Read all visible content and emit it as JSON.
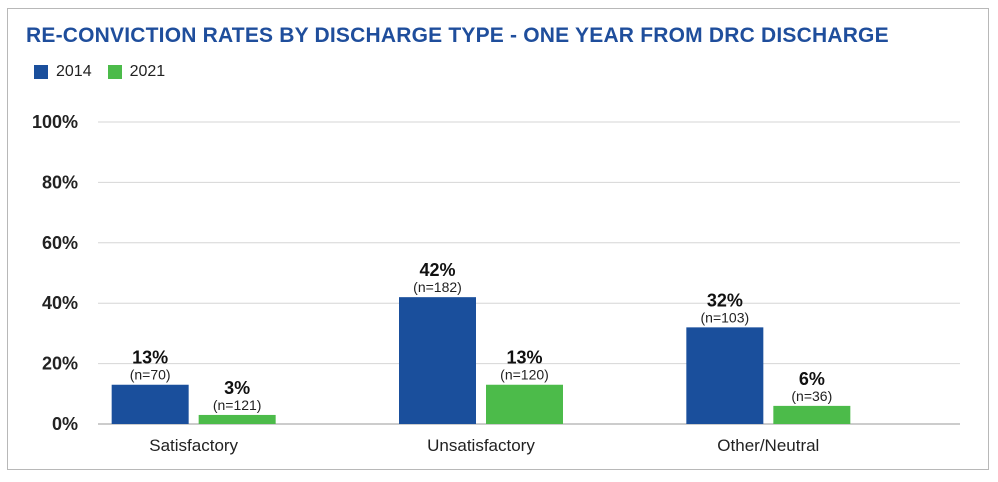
{
  "chart_data": {
    "type": "bar",
    "title": "RE-CONVICTION RATES BY DISCHARGE TYPE - ONE YEAR FROM DRC DISCHARGE",
    "categories": [
      "Satisfactory",
      "Unsatisfactory",
      "Other/Neutral"
    ],
    "series": [
      {
        "name": "2014",
        "color": "#1a4f9c",
        "values": [
          13,
          42,
          32
        ],
        "value_labels": [
          "13%",
          "42%",
          "32%"
        ],
        "n_labels": [
          "(n=70)",
          "(n=182)",
          "(n=103)"
        ]
      },
      {
        "name": "2021",
        "color": "#4cbb4a",
        "values": [
          3,
          13,
          6
        ],
        "value_labels": [
          "3%",
          "13%",
          "6%"
        ],
        "n_labels": [
          "(n=121)",
          "(n=120)",
          "(n=36)"
        ]
      }
    ],
    "ylim": [
      0,
      100
    ],
    "y_ticks": [
      0,
      20,
      40,
      60,
      80,
      100
    ],
    "y_tick_labels": [
      "0%",
      "20%",
      "40%",
      "60%",
      "80%",
      "100%"
    ],
    "grid": true,
    "legend_position": "top-left",
    "xlabel": "",
    "ylabel": ""
  }
}
